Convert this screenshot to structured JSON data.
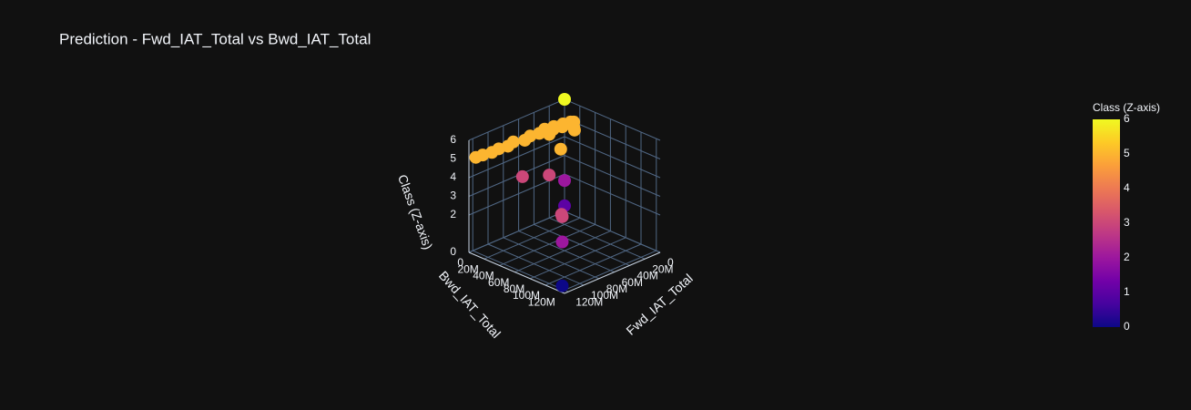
{
  "chart_data": {
    "type": "scatter3d",
    "title": "Prediction - Fwd_IAT_Total vs Bwd_IAT_Total",
    "x_label": "Fwd_IAT_Total",
    "y_label": "Bwd_IAT_Total",
    "z_label": "Class (Z-axis)",
    "colorbar_title": "Class (Z-axis)",
    "colorscale": [
      "#0d0887",
      "#46039f",
      "#7201a8",
      "#9c179e",
      "#bd3786",
      "#d8576b",
      "#ed7953",
      "#fb9f3a",
      "#fdca26",
      "#f0f921"
    ],
    "cmin": 0,
    "cmax": 6,
    "colorbar_ticks": [
      0,
      1,
      2,
      3,
      4,
      5,
      6
    ],
    "xlim": [
      0,
      125000000
    ],
    "ylim": [
      0,
      125000000
    ],
    "zlim": [
      0,
      6
    ],
    "xticks": [
      0,
      {
        "value": 20000000,
        "label": "20M"
      },
      {
        "value": 40000000,
        "label": "40M"
      },
      {
        "value": 60000000,
        "label": "60M"
      },
      {
        "value": 80000000,
        "label": "80M"
      },
      {
        "value": 100000000,
        "label": "100M"
      },
      {
        "value": 120000000,
        "label": "120M"
      }
    ],
    "yticks": [
      0,
      {
        "value": 20000000,
        "label": "20M"
      },
      {
        "value": 40000000,
        "label": "40M"
      },
      {
        "value": 60000000,
        "label": "60M"
      },
      {
        "value": 80000000,
        "label": "80M"
      },
      {
        "value": 100000000,
        "label": "100M"
      },
      {
        "value": 120000000,
        "label": "120M"
      }
    ],
    "zticks": [
      0,
      2,
      3,
      4,
      5,
      6
    ],
    "series": [
      {
        "x": [
          115000000,
          105000000,
          95000000,
          92000000,
          60000000,
          40000000,
          20000000,
          10000000,
          50000000,
          0,
          0,
          118000000,
          110000000,
          100000000,
          90000000,
          80000000,
          70000000,
          60000000,
          50000000,
          40000000,
          30000000,
          25000000,
          20000000,
          15000000,
          10000000,
          5000000,
          2000000,
          8000000,
          12000000,
          35000000
        ],
        "y": [
          112000000,
          102000000,
          92000000,
          88000000,
          5000000,
          20000000,
          20000000,
          10000000,
          45000000,
          0,
          12000000,
          2000000,
          3000000,
          5000000,
          4000000,
          6000000,
          3000000,
          8000000,
          5000000,
          7000000,
          4000000,
          10000000,
          6000000,
          12000000,
          8000000,
          15000000,
          10000000,
          20000000,
          25000000,
          15000000
        ],
        "z": [
          0,
          2,
          3,
          3,
          3,
          3,
          1,
          2,
          5,
          6,
          5,
          5,
          5,
          5,
          5,
          5,
          5,
          5,
          5,
          5,
          5,
          5,
          5,
          5,
          5,
          5,
          5,
          5,
          5,
          5
        ]
      }
    ]
  }
}
